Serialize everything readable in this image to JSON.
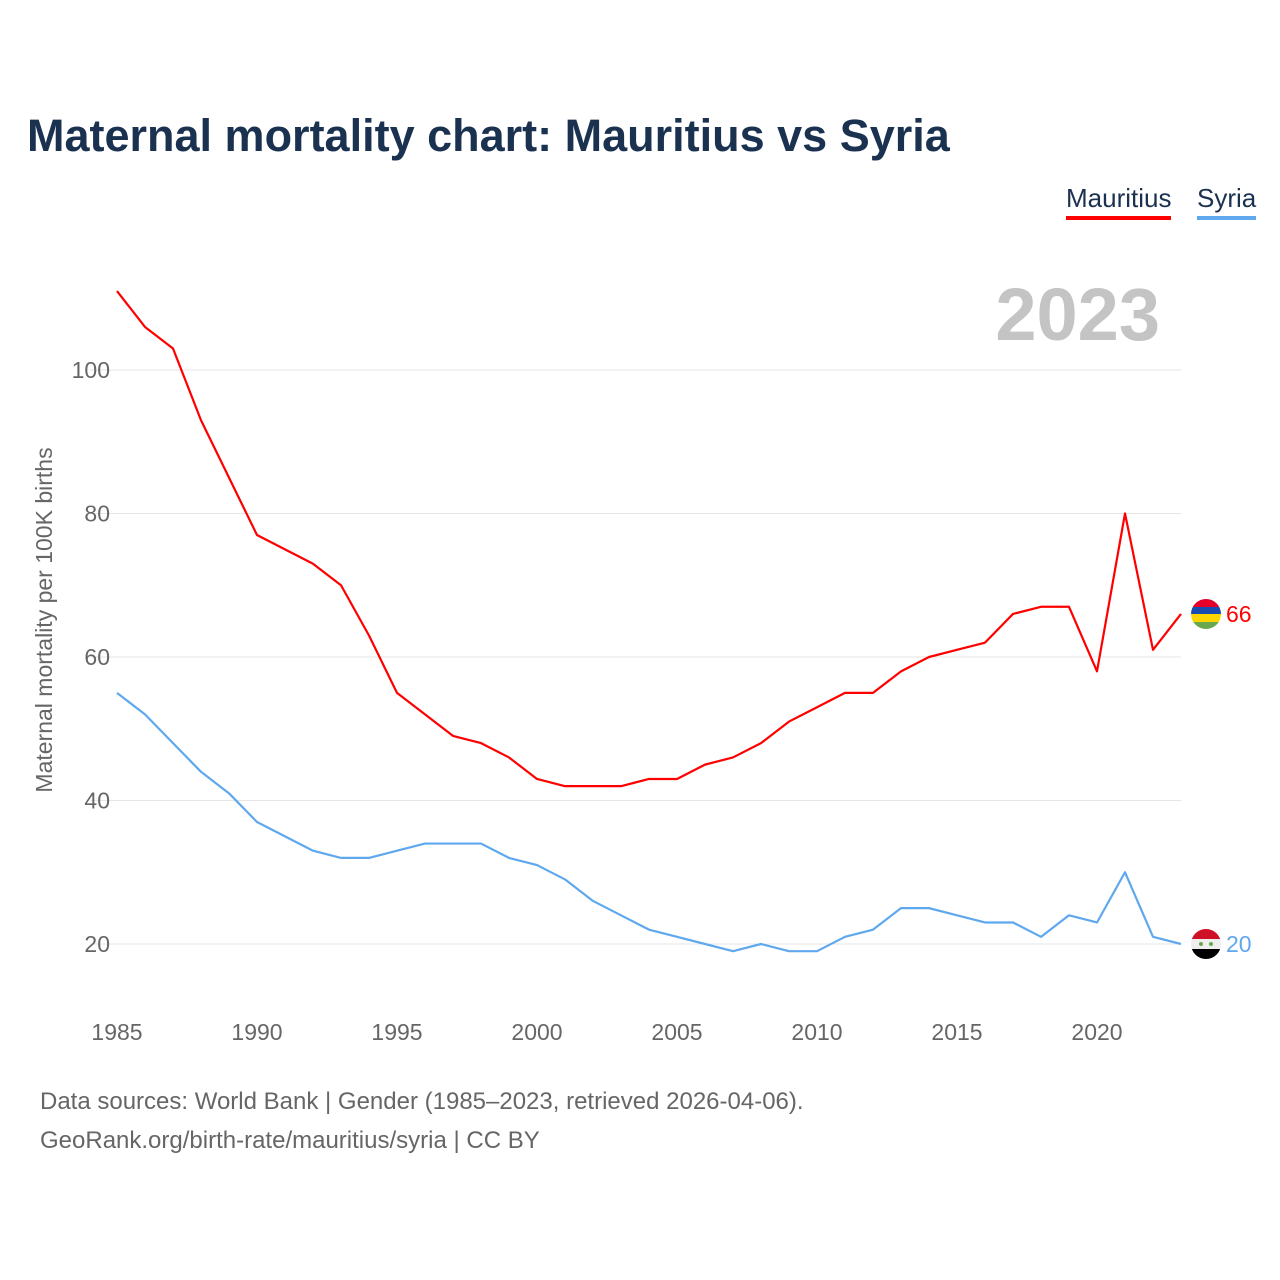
{
  "title": "Maternal mortality chart: Mauritius vs Syria",
  "footer": {
    "line1": "Data sources: World Bank | Gender (1985–2023, retrieved 2026-04-06).",
    "line2": "GeoRank.org/birth-rate/mauritius/syria | CC BY"
  },
  "chart_data": {
    "type": "line",
    "title": "Maternal mortality chart: Mauritius vs Syria",
    "ylabel": "Maternal mortality per 100K births",
    "xlabel": "",
    "year_label": "2023",
    "xlim": [
      1985,
      2023
    ],
    "ylim": [
      10,
      115
    ],
    "xticks": [
      1985,
      1990,
      1995,
      2000,
      2005,
      2010,
      2015,
      2020
    ],
    "yticks": [
      20,
      40,
      60,
      80,
      100
    ],
    "grid": true,
    "legend": "top-right",
    "x": [
      1985,
      1986,
      1987,
      1988,
      1989,
      1990,
      1991,
      1992,
      1993,
      1994,
      1995,
      1996,
      1997,
      1998,
      1999,
      2000,
      2001,
      2002,
      2003,
      2004,
      2005,
      2006,
      2007,
      2008,
      2009,
      2010,
      2011,
      2012,
      2013,
      2014,
      2015,
      2016,
      2017,
      2018,
      2019,
      2020,
      2021,
      2022,
      2023
    ],
    "series": [
      {
        "name": "Mauritius",
        "color": "#ff0000",
        "end_label": "66",
        "values": [
          111,
          106,
          103,
          93,
          85,
          77,
          75,
          73,
          70,
          63,
          55,
          52,
          49,
          48,
          46,
          43,
          42,
          42,
          42,
          43,
          43,
          45,
          46,
          48,
          51,
          53,
          55,
          55,
          58,
          60,
          61,
          62,
          66,
          67,
          67,
          58,
          80,
          61,
          66
        ]
      },
      {
        "name": "Syria",
        "color": "#5fa8ee",
        "end_label": "20",
        "values": [
          55,
          52,
          48,
          44,
          41,
          37,
          35,
          33,
          32,
          32,
          33,
          34,
          34,
          34,
          32,
          31,
          29,
          26,
          24,
          22,
          21,
          20,
          19,
          20,
          19,
          19,
          21,
          22,
          25,
          25,
          24,
          23,
          23,
          21,
          24,
          23,
          30,
          21,
          20
        ]
      }
    ]
  }
}
